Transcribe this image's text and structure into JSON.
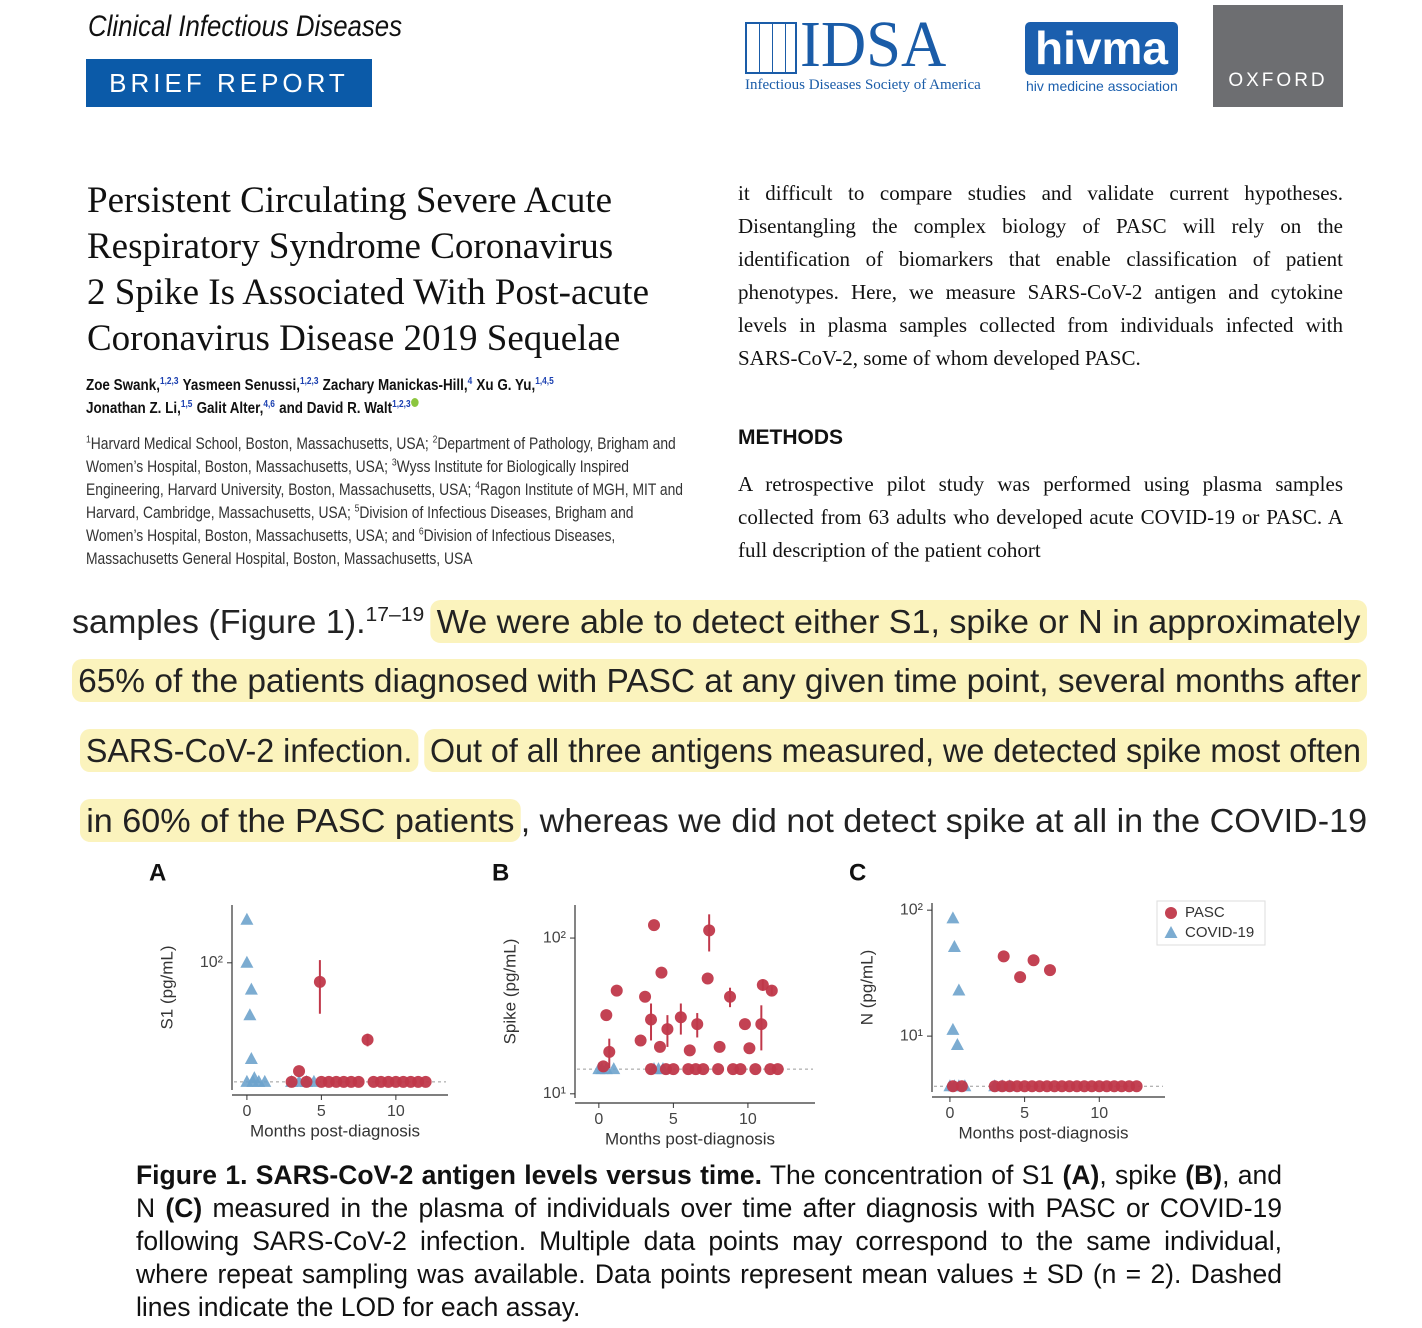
{
  "header": {
    "journal": "Clinical Infectious Diseases",
    "section": "BRIEF REPORT",
    "logos": {
      "idsa": "IDSA",
      "idsa_name": "Infectious Diseases Society of America",
      "hivma": "hivma",
      "hivma_name": "hiv medicine association",
      "oxford": "OXFORD"
    }
  },
  "article": {
    "title_lines": [
      "Persistent Circulating Severe Acute",
      "Respiratory Syndrome Coronavirus",
      "2 Spike Is Associated With Post-acute",
      "Coronavirus Disease 2019 Sequelae"
    ],
    "author_lines": [
      [
        {
          "name": "Zoe Swank,",
          "sup": "1,2,3"
        },
        {
          "name": "Yasmeen Senussi,",
          "sup": "1,2,3"
        },
        {
          "name": "Zachary Manickas-Hill,",
          "sup": "4"
        },
        {
          "name": "Xu G. Yu,",
          "sup": "1,4,5"
        }
      ],
      [
        {
          "name": "Jonathan Z. Li,",
          "sup": "1,5"
        },
        {
          "name": "Galit Alter,",
          "sup": "4,6"
        },
        {
          "name": "and David R. Walt",
          "sup": "1,2,3"
        }
      ]
    ],
    "affiliations": [
      {
        "sup": "1",
        "text": "Harvard Medical School, Boston, Massachusetts, USA; "
      },
      {
        "sup": "2",
        "text": "Department of Pathology, Brigham and Women’s Hospital, Boston, Massachusetts, USA; "
      },
      {
        "sup": "3",
        "text": "Wyss Institute for Biologically Inspired Engineering, Harvard University, Boston, Massachusetts, USA; "
      },
      {
        "sup": "4",
        "text": "Ragon Institute of MGH, MIT and Harvard, Cambridge, Massachusetts, USA; "
      },
      {
        "sup": "5",
        "text": "Division of Infectious Diseases, Brigham and Women’s Hospital, Boston, Massachusetts, USA; and "
      },
      {
        "sup": "6",
        "text": "Division of Infectious Diseases, Massachusetts General Hospital, Boston, Massachusetts, USA"
      }
    ],
    "right_column": {
      "paragraph": "it difficult to compare studies and validate current hypotheses. Disentangling the complex biology of PASC will rely on the identification of biomarkers that enable classification of patient phenotypes. Here, we measure SARS-CoV-2 antigen and cytokine levels in plasma samples collected from individuals infected with SARS-CoV-2, some of whom developed PASC.",
      "heading": "METHODS",
      "methods_paragraph": "A retrospective pilot study was performed using plasma samples collected from 63 adults who developed acute COVID-19 or PASC. A full description of the patient cohort"
    }
  },
  "excerpt": {
    "lines": [
      [
        {
          "text": "samples (Figure 1).",
          "highlight": false
        },
        {
          "sup": "17–19"
        },
        {
          "text": "We were able to detect either S1, spike or N in approximately",
          "highlight": true
        }
      ],
      [
        {
          "text": "65% of the patients diagnosed with PASC at any given time point, several months after",
          "highlight": true
        }
      ],
      [
        {
          "text": "SARS-CoV-2 infection.",
          "highlight": true
        },
        {
          "text": "Out of all three antigens measured, we detected spike most often",
          "highlight": true
        }
      ],
      [
        {
          "text": "in 60% of the PASC patients",
          "highlight": true
        },
        {
          "text": ", whereas we did not detect spike at all in the COVID-19",
          "highlight": false
        }
      ]
    ]
  },
  "chart_data": [
    {
      "type": "scatter",
      "panel": "A",
      "ylabel": "S1 (pg/mL)",
      "xlabel": "Months post-diagnosis",
      "log_y": true,
      "xlim": [
        -1,
        13.5
      ],
      "ylim": [
        16,
        230
      ],
      "xticks": [
        0,
        5,
        10
      ],
      "yticks": [
        {
          "value": 100,
          "label": "10²"
        }
      ],
      "lod": 18,
      "series": [
        {
          "color": "#c0384a",
          "marker": "circle",
          "x": [
            4.9,
            8.1,
            3.5,
            3,
            4,
            5,
            5.5,
            6,
            6.5,
            7,
            7.5,
            8.5,
            9,
            9.5,
            10,
            10.5,
            11,
            11.5,
            12
          ],
          "values": [
            76,
            33,
            21,
            18,
            18,
            18,
            18,
            18,
            18,
            18,
            18,
            18,
            18,
            18,
            18,
            18,
            18,
            18,
            18
          ],
          "errors": [
            28,
            3,
            null,
            null,
            null,
            null,
            null,
            null,
            null,
            null,
            null,
            null,
            null,
            null,
            null,
            null,
            null,
            null,
            null
          ]
        },
        {
          "color": "#6ea3cc",
          "marker": "triangle",
          "x": [
            0,
            0,
            0.3,
            0.2,
            0.3,
            0.5,
            0,
            0.4,
            0.8,
            1.2,
            3,
            3.5,
            4,
            4.5
          ],
          "values": [
            186,
            100,
            68,
            47,
            25,
            19,
            18,
            18,
            18,
            18,
            18,
            18,
            18,
            18
          ]
        }
      ]
    },
    {
      "type": "scatter",
      "panel": "B",
      "ylabel": "Spike (pg/mL)",
      "xlabel": "Months post-diagnosis",
      "log_y": true,
      "xlim": [
        -1.6,
        14.5
      ],
      "ylim": [
        9.4,
        163
      ],
      "xticks": [
        0,
        5,
        10
      ],
      "yticks": [
        {
          "value": 10,
          "label": "10¹"
        },
        {
          "value": 100,
          "label": "10²"
        }
      ],
      "lod": 14.4,
      "series": [
        {
          "color": "#c0384a",
          "marker": "circle",
          "x": [
            3.7,
            7.4,
            4.2,
            1.2,
            3.1,
            7.3,
            8.8,
            11,
            11.6,
            0.5,
            5.5,
            3.5,
            4.6,
            6.6,
            9.8,
            10.9,
            0.7,
            2.8,
            4.1,
            6.1,
            8.1,
            10.1,
            0.3,
            3.5,
            4.5,
            5,
            6,
            6.5,
            7,
            8,
            9,
            9.5,
            10.5,
            11.5,
            12
          ],
          "values": [
            121,
            112,
            60,
            46,
            42,
            55,
            42,
            50,
            46,
            32,
            31,
            30,
            26,
            28,
            28,
            28,
            18.6,
            22,
            20,
            19,
            20,
            19.6,
            15,
            14.4,
            14.4,
            14.4,
            14.4,
            14.4,
            14.4,
            14.4,
            14.4,
            14.4,
            14.4,
            14.4,
            14.4
          ],
          "errors": [
            null,
            30,
            null,
            null,
            null,
            null,
            6,
            4,
            3,
            null,
            7,
            8,
            6,
            5,
            null,
            9,
            4,
            null,
            null,
            null,
            null,
            null,
            null,
            null,
            null,
            null,
            null,
            null,
            null,
            null,
            null,
            null,
            null,
            null,
            null
          ]
        },
        {
          "color": "#6ea3cc",
          "marker": "triangle",
          "x": [
            0,
            0.2,
            0.5,
            1,
            3.7,
            4,
            4.3
          ],
          "values": [
            14.4,
            14.4,
            14.4,
            14.4,
            14.4,
            14.4,
            14.4
          ]
        }
      ]
    },
    {
      "type": "scatter",
      "panel": "C",
      "ylabel": "N (pg/mL)",
      "xlabel": "Months post-diagnosis",
      "log_y": true,
      "xlim": [
        -1.2,
        14.4
      ],
      "ylim": [
        3.6,
        114
      ],
      "xticks": [
        0,
        5,
        10
      ],
      "yticks": [
        {
          "value": 10,
          "label": "10¹"
        },
        {
          "value": 100,
          "label": "10²"
        }
      ],
      "lod": 4,
      "legend": "top-right",
      "series": [
        {
          "name": "PASC",
          "color": "#c0384a",
          "marker": "circle",
          "x": [
            3.6,
            5.6,
            4.7,
            6.7,
            0.2,
            0.8,
            3,
            3.5,
            4,
            4.5,
            5,
            5.5,
            6,
            6.5,
            7,
            7.5,
            8,
            8.5,
            9,
            9.5,
            10,
            10.5,
            11,
            11.5,
            12,
            12.5
          ],
          "values": [
            43,
            40,
            29.4,
            33.4,
            4,
            4,
            4,
            4,
            4,
            4,
            4,
            4,
            4,
            4,
            4,
            4,
            4,
            4,
            4,
            4,
            4,
            4,
            4,
            4,
            4,
            4
          ]
        },
        {
          "name": "COVID-19",
          "color": "#6ea3cc",
          "marker": "triangle",
          "x": [
            0.2,
            0.3,
            0.6,
            0.2,
            0.5,
            0,
            0.3,
            0.6,
            1,
            3,
            3.5,
            4
          ],
          "values": [
            86,
            51,
            23,
            11.2,
            8.5,
            4,
            4,
            4,
            4,
            4,
            4,
            4
          ]
        }
      ]
    }
  ],
  "caption": [
    {
      "text": "Figure 1. SARS-CoV-2 antigen levels versus time.",
      "bold": true
    },
    {
      "text": " The concentration of S1 ",
      "bold": false
    },
    {
      "text": "(A)",
      "bold": true
    },
    {
      "text": ", spike ",
      "bold": false
    },
    {
      "text": "(B)",
      "bold": true
    },
    {
      "text": ", and N ",
      "bold": false
    },
    {
      "text": "(C)",
      "bold": true
    },
    {
      "text": " measured in the plasma of individuals over time after diagnosis with PASC or COVID-19 following SARS-CoV-2 infection. Multiple data points may correspond to the same individual, where repeat sampling was available. Data points represent mean values ± SD (n = 2). Dashed lines indicate the LOD for each assay.",
      "bold": false
    }
  ]
}
